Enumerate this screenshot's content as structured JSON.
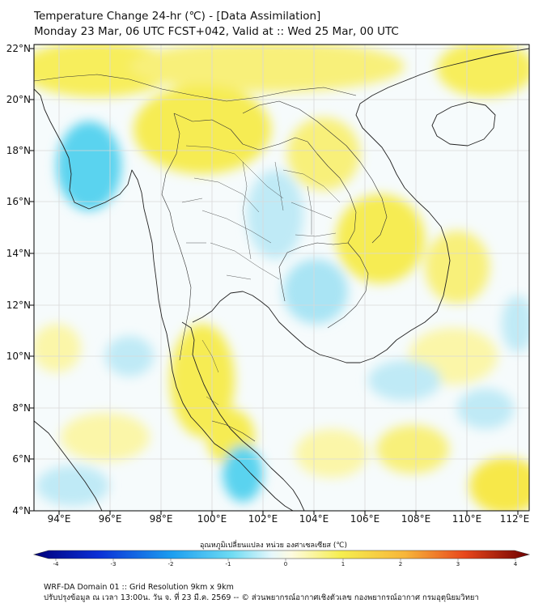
{
  "title": {
    "line1": "Temperature Change 24-hr (℃) - [Data Assimilation]",
    "line2": "Monday 23 Mar, 06 UTC FCST+042, Valid at :: Wed 25 Mar, 00 UTC"
  },
  "map": {
    "lon_range": [
      93,
      112.5
    ],
    "lat_range": [
      4,
      22.2
    ],
    "x_ticks": [
      "94°E",
      "96°E",
      "98°E",
      "100°E",
      "102°E",
      "104°E",
      "106°E",
      "108°E",
      "110°E",
      "112°E"
    ],
    "y_ticks": [
      "22°N",
      "20°N",
      "18°N",
      "16°N",
      "14°N",
      "12°N",
      "10°N",
      "8°N",
      "6°N",
      "4°N"
    ]
  },
  "colorbar": {
    "label": "อุณหภูมิเปลี่ยนแปลง หน่วย องศาเซลเซียส (℃)",
    "ticks": [
      "-4",
      "-3",
      "-2",
      "-1",
      "0",
      "1",
      "2",
      "3",
      "4"
    ],
    "range": [
      -4,
      4
    ]
  },
  "footer": {
    "line1": "WRF-DA Domain 01 :: Grid Resolution 9km x 9km",
    "line2": "ปรับปรุงข้อมูล ณ เวลา 13:00น. วัน จ. ที่ 23 มี.ค. 2569 -- © ส่วนพยากรณ์อากาศเชิงตัวเลข กองพยากรณ์อากาศ กรมอุตุนิยมวิทยา"
  },
  "colors": {
    "warm": "#f7ee5c",
    "warm_light": "#fbf6a8",
    "cool": "#5ad3ef",
    "cool_light": "#bfeaf6",
    "coast": "#222222",
    "grid": "#d9d9d9"
  }
}
